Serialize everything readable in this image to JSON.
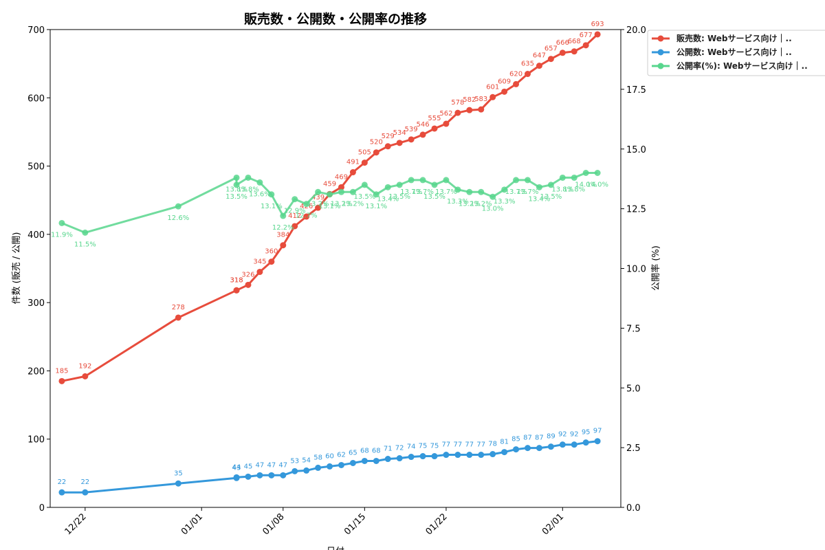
{
  "chart_data": {
    "type": "line",
    "title": "販売数・公開数・公開率の推移",
    "xlabel": "日付",
    "ylabel_left": "件数 (販売 / 公開)",
    "ylabel_right": "公開率 (%)",
    "ylim_left": [
      0,
      700
    ],
    "ylim_right": [
      0,
      20
    ],
    "yticks_left": [
      0,
      100,
      200,
      300,
      400,
      500,
      600,
      700
    ],
    "yticks_right": [
      0.0,
      2.5,
      5.0,
      7.5,
      10.0,
      12.5,
      15.0,
      17.5,
      20.0
    ],
    "xlim": [
      "2023-12-19",
      "2024-02-06"
    ],
    "xticks": [
      {
        "date": "2023-12-22",
        "label": "12/22"
      },
      {
        "date": "2024-01-01",
        "label": "01/01"
      },
      {
        "date": "2024-01-08",
        "label": "01/08"
      },
      {
        "date": "2024-01-15",
        "label": "01/15"
      },
      {
        "date": "2024-01-22",
        "label": "01/22"
      },
      {
        "date": "2024-02-01",
        "label": "02/01"
      }
    ],
    "dates": [
      "2023-12-20",
      "2023-12-22",
      "2023-12-30",
      "2024-01-04",
      "2024-01-04",
      "2024-01-05",
      "2024-01-06",
      "2024-01-07",
      "2024-01-08",
      "2024-01-09",
      "2024-01-10",
      "2024-01-11",
      "2024-01-12",
      "2024-01-13",
      "2024-01-14",
      "2024-01-15",
      "2024-01-16",
      "2024-01-17",
      "2024-01-18",
      "2024-01-19",
      "2024-01-20",
      "2024-01-21",
      "2024-01-22",
      "2024-01-23",
      "2024-01-24",
      "2024-01-25",
      "2024-01-26",
      "2024-01-27",
      "2024-01-28",
      "2024-01-29",
      "2024-01-30",
      "2024-01-31",
      "2024-02-01",
      "2024-02-02",
      "2024-02-03",
      "2024-02-04"
    ],
    "legend_position": "top-right outside",
    "grid": false,
    "series": [
      {
        "name": "販売数: Webサービス向け｜..",
        "axis": "left",
        "color": "#e74c3c",
        "values": [
          185,
          192,
          278,
          318,
          318,
          326,
          345,
          360,
          384,
          412,
          426,
          439,
          459,
          469,
          491,
          505,
          520,
          529,
          534,
          539,
          546,
          555,
          562,
          578,
          582,
          583,
          601,
          609,
          620,
          635,
          647,
          657,
          666,
          668,
          677,
          693
        ],
        "labels": [
          "185",
          "192",
          "278",
          "318",
          "318",
          "326",
          "345",
          "360",
          "384",
          "412",
          "426",
          "439",
          "459",
          "469",
          "491",
          "505",
          "520",
          "529",
          "534",
          "539",
          "546",
          "555",
          "562",
          "578",
          "582",
          "583",
          "601",
          "609",
          "620",
          "635",
          "647",
          "657",
          "666",
          "668",
          "677",
          "693"
        ]
      },
      {
        "name": "公開数: Webサービス向け｜..",
        "axis": "left",
        "color": "#3498db",
        "values": [
          22,
          22,
          35,
          43,
          44,
          45,
          47,
          47,
          47,
          53,
          54,
          58,
          60,
          62,
          65,
          68,
          68,
          71,
          72,
          74,
          75,
          75,
          77,
          77,
          77,
          77,
          78,
          81,
          85,
          87,
          87,
          89,
          92,
          92,
          95,
          97
        ],
        "labels": [
          "22",
          "22",
          "35",
          "43",
          "44",
          "45",
          "47",
          "47",
          "47",
          "53",
          "54",
          "58",
          "60",
          "62",
          "65",
          "68",
          "68",
          "71",
          "72",
          "74",
          "75",
          "75",
          "77",
          "77",
          "77",
          "77",
          "78",
          "81",
          "85",
          "87",
          "87",
          "89",
          "92",
          "92",
          "95",
          "97"
        ]
      },
      {
        "name": "公開率(%): Webサービス向け｜..",
        "axis": "right",
        "color": "#58d68d",
        "values": [
          11.9,
          11.5,
          12.6,
          13.8,
          13.5,
          13.8,
          13.6,
          13.1,
          12.2,
          12.9,
          12.7,
          13.2,
          13.1,
          13.2,
          13.2,
          13.5,
          13.1,
          13.4,
          13.5,
          13.7,
          13.7,
          13.5,
          13.7,
          13.3,
          13.2,
          13.2,
          13.0,
          13.3,
          13.7,
          13.7,
          13.4,
          13.5,
          13.8,
          13.8,
          14.0,
          14.0
        ],
        "labels": [
          "11.9%",
          "11.5%",
          "12.6%",
          "13.8%",
          "13.5%",
          "13.8%",
          "13.6%",
          "13.1%",
          "12.2%",
          "12.9%",
          "12.7%",
          "13.2%",
          "13.1%",
          "13.2%",
          "13.2%",
          "13.5%",
          "13.1%",
          "13.4%",
          "13.5%",
          "13.7%",
          "13.7%",
          "13.5%",
          "13.7%",
          "13.3%",
          "13.2%",
          "13.2%",
          "13.0%",
          "13.3%",
          "13.7%",
          "13.7%",
          "13.4%",
          "13.5%",
          "13.8%",
          "13.8%",
          "14.0%",
          "14.0%"
        ]
      }
    ]
  }
}
